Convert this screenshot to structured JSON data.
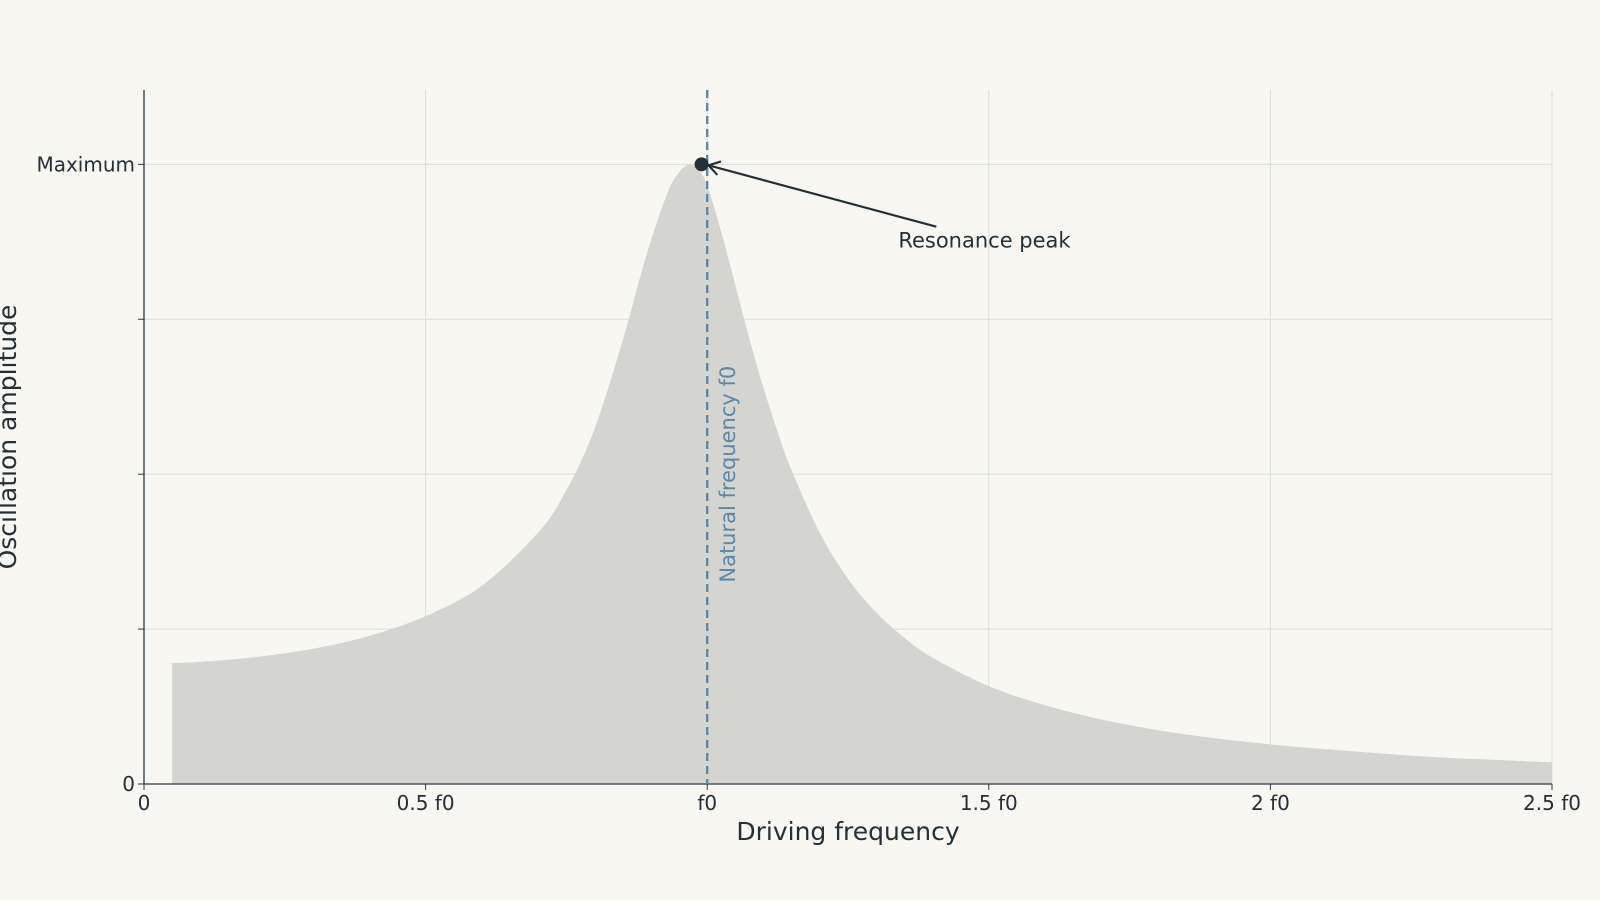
{
  "chart_data": {
    "type": "area",
    "title": "",
    "xlabel": "Driving frequency",
    "ylabel": "Oscillation amplitude",
    "xlim": [
      0,
      2.5
    ],
    "ylim": [
      0,
      1.12
    ],
    "x_ticks": [
      {
        "value": 0,
        "label": "0"
      },
      {
        "value": 0.5,
        "label": "0.5 f0"
      },
      {
        "value": 1.0,
        "label": "f0"
      },
      {
        "value": 1.5,
        "label": "1.5 f0"
      },
      {
        "value": 2.0,
        "label": "2 f0"
      },
      {
        "value": 2.5,
        "label": "2.5 f0"
      }
    ],
    "y_ticks": [
      {
        "value": 0,
        "label": "0"
      },
      {
        "value": 0.25,
        "label": ""
      },
      {
        "value": 0.5,
        "label": ""
      },
      {
        "value": 0.75,
        "label": ""
      },
      {
        "value": 1.0,
        "label": "Maximum"
      }
    ],
    "grid": true,
    "series": [
      {
        "x": [
          0.05,
          0.1,
          0.2,
          0.3,
          0.4,
          0.5,
          0.6,
          0.7,
          0.75,
          0.8,
          0.85,
          0.88,
          0.9,
          0.93,
          0.95,
          0.97,
          0.99,
          1.0,
          1.01,
          1.03,
          1.05,
          1.07,
          1.1,
          1.13,
          1.15,
          1.2,
          1.25,
          1.3,
          1.35,
          1.4,
          1.5,
          1.6,
          1.7,
          1.8,
          1.9,
          2.0,
          2.1,
          2.2,
          2.3,
          2.4,
          2.5
        ],
        "y": [
          0.195,
          0.197,
          0.205,
          0.218,
          0.239,
          0.271,
          0.32,
          0.406,
          0.474,
          0.573,
          0.716,
          0.815,
          0.877,
          0.955,
          0.987,
          1.0,
          0.985,
          0.965,
          0.938,
          0.874,
          0.805,
          0.735,
          0.639,
          0.555,
          0.506,
          0.405,
          0.331,
          0.277,
          0.236,
          0.204,
          0.158,
          0.127,
          0.104,
          0.087,
          0.074,
          0.064,
          0.056,
          0.049,
          0.043,
          0.039,
          0.035
        ],
        "color": "#d4d4d0"
      }
    ],
    "vertical_line": {
      "x": 1.0,
      "label": "Natural frequency f0",
      "color": "#5b88a6",
      "style": "dashed"
    },
    "peak_marker": {
      "x": 0.99,
      "y": 1.0,
      "color": "#243038"
    },
    "annotation": {
      "text": "Resonance peak",
      "x": 1.35,
      "y": 0.88
    }
  }
}
